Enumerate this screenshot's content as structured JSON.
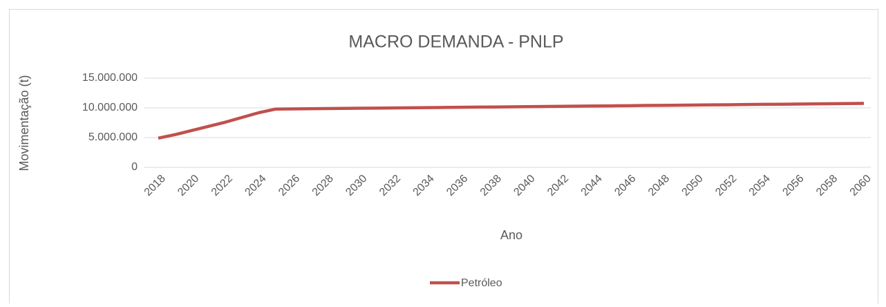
{
  "chart_data": {
    "type": "line",
    "title": "MACRO DEMANDA - PNLP",
    "x_label": "Ano",
    "y_label": "Movimentação (t)",
    "x": [
      2018,
      2019,
      2020,
      2021,
      2022,
      2023,
      2024,
      2025,
      2026,
      2027,
      2028,
      2029,
      2030,
      2031,
      2032,
      2033,
      2034,
      2035,
      2036,
      2037,
      2038,
      2039,
      2040,
      2041,
      2042,
      2043,
      2044,
      2045,
      2046,
      2047,
      2048,
      2049,
      2050,
      2051,
      2052,
      2053,
      2054,
      2055,
      2056,
      2057,
      2058,
      2059,
      2060
    ],
    "series": [
      {
        "name": "Petróleo",
        "color": "#c0504d",
        "values": [
          4900000,
          5500000,
          6200000,
          6900000,
          7600000,
          8400000,
          9200000,
          9800000,
          9830000,
          9850000,
          9880000,
          9910000,
          9940000,
          9960000,
          9990000,
          10020000,
          10040000,
          10070000,
          10100000,
          10130000,
          10150000,
          10180000,
          10210000,
          10230000,
          10260000,
          10290000,
          10320000,
          10340000,
          10370000,
          10400000,
          10420000,
          10450000,
          10480000,
          10510000,
          10530000,
          10560000,
          10590000,
          10610000,
          10640000,
          10670000,
          10700000,
          10720000,
          10750000
        ]
      }
    ],
    "xlim": [
      2018,
      2060
    ],
    "xticks": [
      2018,
      2020,
      2022,
      2024,
      2026,
      2028,
      2030,
      2032,
      2034,
      2036,
      2038,
      2040,
      2042,
      2044,
      2046,
      2048,
      2050,
      2052,
      2054,
      2056,
      2058,
      2060
    ],
    "ylim": [
      0,
      15000000
    ],
    "yticks": [
      0,
      {
        "value": 5000000,
        "label": "5.000.000"
      },
      {
        "value": 10000000,
        "label": "10.000.000"
      },
      {
        "value": 15000000,
        "label": "15.000.000"
      }
    ],
    "grid": true,
    "legend": "bottom"
  }
}
